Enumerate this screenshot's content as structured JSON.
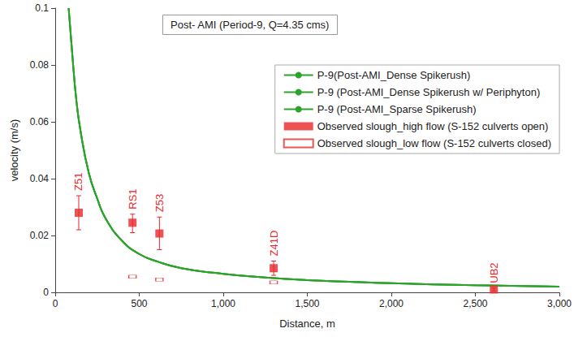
{
  "chart_data": {
    "type": "line",
    "title": "Post- AMI (Period-9, Q=4.35 cms)",
    "x_label": "Distance, m",
    "y_label": "velocity (m/s)",
    "xlim": [
      0,
      3000
    ],
    "ylim": [
      0,
      0.1
    ],
    "xticks": [
      0,
      500,
      {
        "value": 1000,
        "label": "1,000"
      },
      {
        "value": 1500,
        "label": "1,500"
      },
      {
        "value": 2000,
        "label": "2,000"
      },
      {
        "value": 2500,
        "label": "2,500"
      },
      {
        "value": 3000,
        "label": "3,000"
      }
    ],
    "yticks": [
      0,
      0.02,
      0.04,
      0.06,
      0.08,
      0.1
    ],
    "grid": false,
    "legend": "upper right",
    "series": [
      {
        "name": "P-9(Post-AMI_Dense Spikerush)",
        "type": "line",
        "color": "#2ca42c",
        "line_style": "solid",
        "x": [
          80,
          100,
          125,
          150,
          200,
          250,
          300,
          400,
          500,
          600,
          750,
          1000,
          1250,
          1500,
          1750,
          2000,
          2500,
          3000
        ],
        "values": [
          0.1,
          0.085,
          0.068,
          0.057,
          0.042,
          0.033,
          0.026,
          0.018,
          0.0135,
          0.011,
          0.0085,
          0.0065,
          0.0052,
          0.0043,
          0.0037,
          0.0032,
          0.0025,
          0.002
        ]
      },
      {
        "name": "P-9 (Post-AMI_Dense Spikerush w/ Periphyton)",
        "type": "line",
        "color": "#2ca42c",
        "line_style": "solid",
        "x": [
          80,
          100,
          125,
          150,
          200,
          250,
          300,
          400,
          500,
          600,
          750,
          1000,
          1250,
          1500,
          1750,
          2000,
          2500,
          3000
        ],
        "values": [
          0.1,
          0.085,
          0.068,
          0.057,
          0.042,
          0.033,
          0.026,
          0.018,
          0.0135,
          0.011,
          0.0085,
          0.0065,
          0.0052,
          0.0043,
          0.0037,
          0.0032,
          0.0025,
          0.002
        ]
      },
      {
        "name": "P-9 (Post-AMI_Sparse Spikerush)",
        "type": "line",
        "color": "#2ca42c",
        "line_style": "solid",
        "x": [
          80,
          100,
          125,
          150,
          200,
          250,
          300,
          400,
          500,
          600,
          750,
          1000,
          1250,
          1500,
          1750,
          2000,
          2500,
          3000
        ],
        "values": [
          0.1,
          0.085,
          0.068,
          0.057,
          0.042,
          0.033,
          0.026,
          0.018,
          0.0135,
          0.011,
          0.0085,
          0.0065,
          0.0052,
          0.0043,
          0.0037,
          0.0032,
          0.0025,
          0.002
        ]
      },
      {
        "name": "Observed slough_high flow (S-152 culverts open)",
        "type": "scatter",
        "marker": "square",
        "color": "#e8272b",
        "x": [
          140,
          460,
          620,
          1300,
          2610
        ],
        "values": [
          0.028,
          0.0245,
          0.0207,
          0.0085,
          0.001
        ],
        "error_low": [
          0.022,
          0.021,
          0.015,
          0.006,
          0.0005
        ],
        "error_high": [
          0.034,
          0.0275,
          0.0265,
          0.011,
          0.0015
        ],
        "point_labels": [
          "Z51",
          "RS1",
          "Z53",
          "Z41D",
          "UB2"
        ]
      },
      {
        "name": "Observed slough_low flow (S-152 culverts closed)",
        "type": "scatter",
        "marker": "open_rect",
        "color": "#e8272b",
        "x": [
          460,
          620,
          1300
        ],
        "values": [
          0.0055,
          0.0045,
          0.0035
        ]
      }
    ]
  }
}
